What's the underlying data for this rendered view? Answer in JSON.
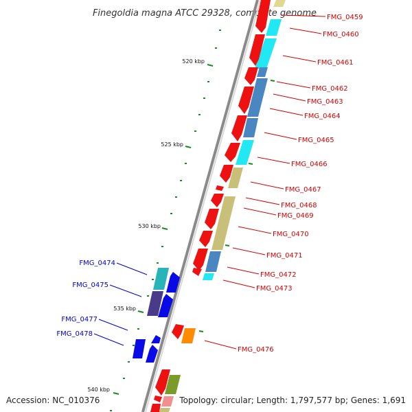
{
  "title": "Finegoldia magna ATCC 29328, complete genome",
  "footer": {
    "accession": "Accession: NC_010376",
    "topology": "Topology: circular; Length: 1,797,577 bp; Genes: 1,691"
  },
  "ticks": [
    "520 kbp",
    "525 kbp",
    "530 kbp",
    "535 kbp",
    "540 kbp"
  ],
  "forward_genes": [
    "FMG_0459",
    "FMG_0460",
    "FMG_0461",
    "FMG_0462",
    "FMG_0463",
    "FMG_0464",
    "FMG_0465",
    "FMG_0466",
    "FMG_0467",
    "FMG_0468",
    "FMG_0469",
    "FMG_0470",
    "FMG_0471",
    "FMG_0472",
    "FMG_0473",
    "FMG_0476"
  ],
  "reverse_genes": [
    "FMG_0474",
    "FMG_0475",
    "FMG_0477",
    "FMG_0478"
  ],
  "colors": {
    "forward": "#ee1111",
    "reverse": "#0a0ae6",
    "cyan": "#22e8f4",
    "steel": "#4a86c0",
    "khaki": "#c8c078",
    "olive": "#7a9a2a",
    "orange": "#ff8c00",
    "teal": "#28b4b8",
    "purple": "#4a3a8a",
    "pink": "#f09090",
    "label_forward": "#d40000",
    "label_reverse": "#0000cc",
    "tick_green": "#1a8a1a",
    "backbone": "#888888"
  }
}
